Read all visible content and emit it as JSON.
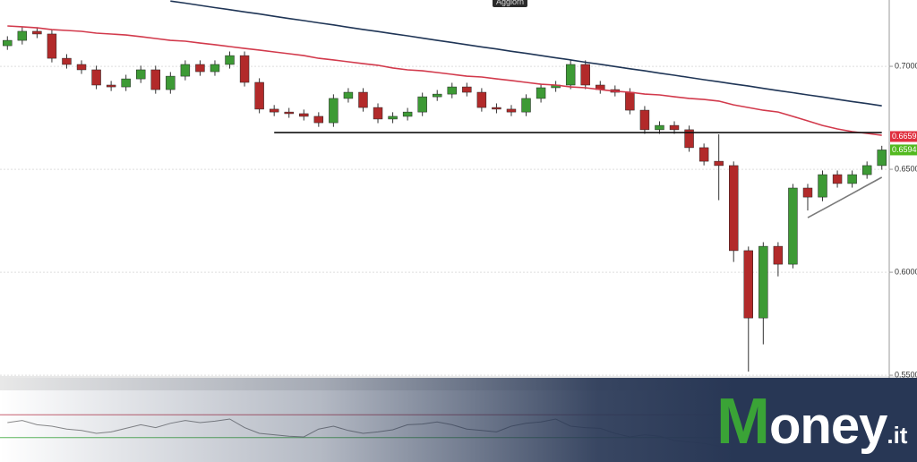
{
  "top_label": "Aggiorn",
  "brand": {
    "name": "Money",
    "suffix": ".it"
  },
  "chart_data": [
    {
      "type": "candlestick",
      "categories": [
        null,
        null,
        null,
        null,
        null,
        null,
        null,
        null,
        null,
        null,
        null,
        null,
        null,
        null,
        null,
        null,
        null,
        null,
        null,
        null,
        null,
        null,
        null,
        null,
        null,
        null,
        null,
        null,
        null,
        null,
        null,
        null,
        null,
        null,
        null,
        null,
        null,
        null,
        null,
        null,
        null,
        null,
        null,
        null,
        null,
        null,
        null,
        null,
        null,
        null,
        null,
        null,
        null,
        null,
        null,
        null,
        null,
        null,
        null,
        null
      ],
      "open": [
        0.71,
        0.7126,
        0.717,
        0.7157,
        0.7039,
        0.7009,
        0.6983,
        0.6909,
        0.69,
        0.6939,
        0.6983,
        0.6887,
        0.6952,
        0.7009,
        0.6974,
        0.7009,
        0.7052,
        0.6922,
        0.6792,
        0.6778,
        0.677,
        0.6757,
        0.6726,
        0.6844,
        0.6874,
        0.68,
        0.6744,
        0.6757,
        0.6778,
        0.6852,
        0.6865,
        0.69,
        0.6874,
        0.68,
        0.6792,
        0.6778,
        0.6844,
        0.6896,
        0.6909,
        0.7009,
        0.6909,
        0.6887,
        0.6874,
        0.6787,
        0.6692,
        0.6713,
        0.6692,
        0.6605,
        0.6539,
        0.6518,
        0.6105,
        0.5778,
        0.6126,
        0.6039,
        0.6409,
        0.6365,
        0.6474,
        0.6431,
        0.6474,
        0.6518
      ],
      "high": [
        0.7146,
        0.719,
        0.719,
        0.7177,
        0.7059,
        0.7029,
        0.7003,
        0.6929,
        0.6959,
        0.7003,
        0.7003,
        0.6972,
        0.7029,
        0.7029,
        0.7029,
        0.7072,
        0.7072,
        0.6942,
        0.6812,
        0.6798,
        0.679,
        0.6777,
        0.6864,
        0.6894,
        0.6894,
        0.682,
        0.6777,
        0.6798,
        0.6872,
        0.6885,
        0.692,
        0.692,
        0.6894,
        0.682,
        0.6812,
        0.6864,
        0.6916,
        0.6929,
        0.7029,
        0.7029,
        0.6929,
        0.6907,
        0.6894,
        0.6807,
        0.6733,
        0.6733,
        0.6712,
        0.6625,
        0.667,
        0.6538,
        0.6125,
        0.6146,
        0.6146,
        0.6429,
        0.6429,
        0.6494,
        0.6494,
        0.6494,
        0.6538,
        0.6614
      ],
      "low": [
        0.708,
        0.7106,
        0.7137,
        0.7019,
        0.6989,
        0.6963,
        0.6889,
        0.688,
        0.688,
        0.6919,
        0.6867,
        0.6867,
        0.6932,
        0.6954,
        0.6954,
        0.6989,
        0.6902,
        0.6772,
        0.6758,
        0.675,
        0.6737,
        0.6706,
        0.6706,
        0.6824,
        0.678,
        0.6724,
        0.6724,
        0.6737,
        0.6758,
        0.6832,
        0.6845,
        0.6854,
        0.678,
        0.6772,
        0.6758,
        0.6758,
        0.6824,
        0.6876,
        0.6889,
        0.6889,
        0.6867,
        0.6854,
        0.6767,
        0.6672,
        0.6672,
        0.6672,
        0.6585,
        0.6519,
        0.635,
        0.605,
        0.5518,
        0.565,
        0.598,
        0.6019,
        0.63,
        0.6345,
        0.6411,
        0.6411,
        0.6454,
        0.6498
      ],
      "close": [
        0.7126,
        0.717,
        0.7157,
        0.7039,
        0.7009,
        0.6983,
        0.6909,
        0.69,
        0.6939,
        0.6983,
        0.6887,
        0.6952,
        0.7009,
        0.6974,
        0.7009,
        0.7052,
        0.6922,
        0.6792,
        0.6778,
        0.677,
        0.6757,
        0.6726,
        0.6844,
        0.6874,
        0.68,
        0.6744,
        0.6757,
        0.6778,
        0.6852,
        0.6865,
        0.69,
        0.6874,
        0.68,
        0.6792,
        0.6778,
        0.6844,
        0.6896,
        0.6909,
        0.7009,
        0.6909,
        0.6887,
        0.6874,
        0.6787,
        0.6692,
        0.6713,
        0.6692,
        0.6605,
        0.6539,
        0.6518,
        0.6105,
        0.5778,
        0.6126,
        0.6039,
        0.6409,
        0.6365,
        0.6474,
        0.6431,
        0.6474,
        0.6518,
        0.6594
      ],
      "up_color": "#3d9a35",
      "down_color": "#b22a2a",
      "lines": [
        {
          "color": "#d23a4c",
          "values": [
            0.7196,
            0.7192,
            0.7187,
            0.7178,
            0.7174,
            0.717,
            0.7161,
            0.7157,
            0.7152,
            0.7144,
            0.7135,
            0.7126,
            0.7122,
            0.7113,
            0.7105,
            0.7096,
            0.7087,
            0.7079,
            0.707,
            0.7061,
            0.7052,
            0.7039,
            0.7031,
            0.7022,
            0.7013,
            0.7005,
            0.6992,
            0.6983,
            0.6978,
            0.697,
            0.6961,
            0.6952,
            0.6948,
            0.6939,
            0.6931,
            0.6922,
            0.6913,
            0.6909,
            0.69,
            0.6896,
            0.6887,
            0.6879,
            0.6874,
            0.6865,
            0.6861,
            0.6852,
            0.6844,
            0.6839,
            0.6831,
            0.6813,
            0.68,
            0.6787,
            0.6778,
            0.6757,
            0.6735,
            0.6713,
            0.6696,
            0.6683,
            0.6674,
            0.6665
          ]
        },
        {
          "color": "#1f3556",
          "values": [
            null,
            null,
            null,
            null,
            null,
            null,
            null,
            null,
            null,
            null,
            null,
            0.7317,
            0.7307,
            0.7296,
            0.7285,
            0.7275,
            0.7264,
            0.7254,
            0.7243,
            0.7232,
            0.7222,
            0.7211,
            0.7201,
            0.719,
            0.7179,
            0.7169,
            0.7158,
            0.7148,
            0.7137,
            0.7126,
            0.7116,
            0.7105,
            0.7094,
            0.7084,
            0.7073,
            0.7063,
            0.7052,
            0.7041,
            0.7031,
            0.702,
            0.701,
            0.6999,
            0.6988,
            0.6978,
            0.6967,
            0.6957,
            0.6946,
            0.6935,
            0.6925,
            0.6914,
            0.6904,
            0.6893,
            0.6882,
            0.6872,
            0.6861,
            0.6851,
            0.684,
            0.6829,
            0.6819,
            0.6808
          ]
        },
        {
          "color": "#111111",
          "values": [
            null,
            null,
            null,
            null,
            null,
            null,
            null,
            null,
            null,
            null,
            null,
            null,
            null,
            null,
            null,
            null,
            null,
            null,
            0.6678,
            0.6678,
            0.6678,
            0.6678,
            0.6678,
            0.6678,
            0.6678,
            0.6678,
            0.6678,
            0.6678,
            0.6678,
            0.6678,
            0.6678,
            0.6678,
            0.6678,
            0.6678,
            0.6678,
            0.6678,
            0.6678,
            0.6678,
            0.6678,
            0.6678,
            0.6678,
            0.6678,
            0.6678,
            0.6678,
            0.6678,
            0.6678,
            0.6678,
            0.6678,
            0.6678,
            0.6678,
            0.6678,
            0.6678,
            0.6678,
            0.6678,
            0.6678,
            0.6678,
            0.6678,
            0.6678,
            0.6678,
            0.6678
          ]
        },
        {
          "color": "#7a7a7a",
          "values": [
            null,
            null,
            null,
            null,
            null,
            null,
            null,
            null,
            null,
            null,
            null,
            null,
            null,
            null,
            null,
            null,
            null,
            null,
            null,
            null,
            null,
            null,
            null,
            null,
            null,
            null,
            null,
            null,
            null,
            null,
            null,
            null,
            null,
            null,
            null,
            null,
            null,
            null,
            null,
            null,
            null,
            null,
            null,
            null,
            null,
            null,
            null,
            null,
            null,
            null,
            null,
            null,
            null,
            null,
            0.6265,
            0.6304,
            0.6343,
            0.6382,
            0.6422,
            0.6461
          ]
        }
      ],
      "markers": [
        {
          "value": 0.6659,
          "color": "#e0303f"
        },
        {
          "value": 0.6594,
          "color": "#52b91f"
        }
      ],
      "ylim": [
        0.5496,
        0.7322
      ],
      "yticks": [
        {
          "value": 0.7,
          "label": "0.7000"
        },
        {
          "value": 0.65,
          "label": "0.6500"
        },
        {
          "value": 0.6,
          "label": "0.6000"
        },
        {
          "value": 0.55,
          "label": "0.5500"
        }
      ],
      "grid": true
    },
    {
      "type": "line",
      "color": "#8a8a8a",
      "values": [
        55,
        58,
        52,
        50,
        46,
        44,
        40,
        42,
        47,
        52,
        48,
        54,
        58,
        55,
        57,
        60,
        48,
        40,
        38,
        36,
        35,
        46,
        50,
        44,
        40,
        42,
        45,
        52,
        53,
        56,
        52,
        46,
        44,
        42,
        50,
        54,
        56,
        60,
        50,
        48,
        47,
        40,
        35,
        38,
        36,
        30,
        28,
        26,
        22,
        18,
        30,
        28,
        40,
        42,
        48,
        46,
        50,
        52,
        55,
        58
      ],
      "levels": [
        {
          "value": 66,
          "color": "#c86070"
        },
        {
          "value": 34,
          "color": "#5cb85c"
        }
      ],
      "ylim": [
        0,
        100
      ]
    }
  ]
}
